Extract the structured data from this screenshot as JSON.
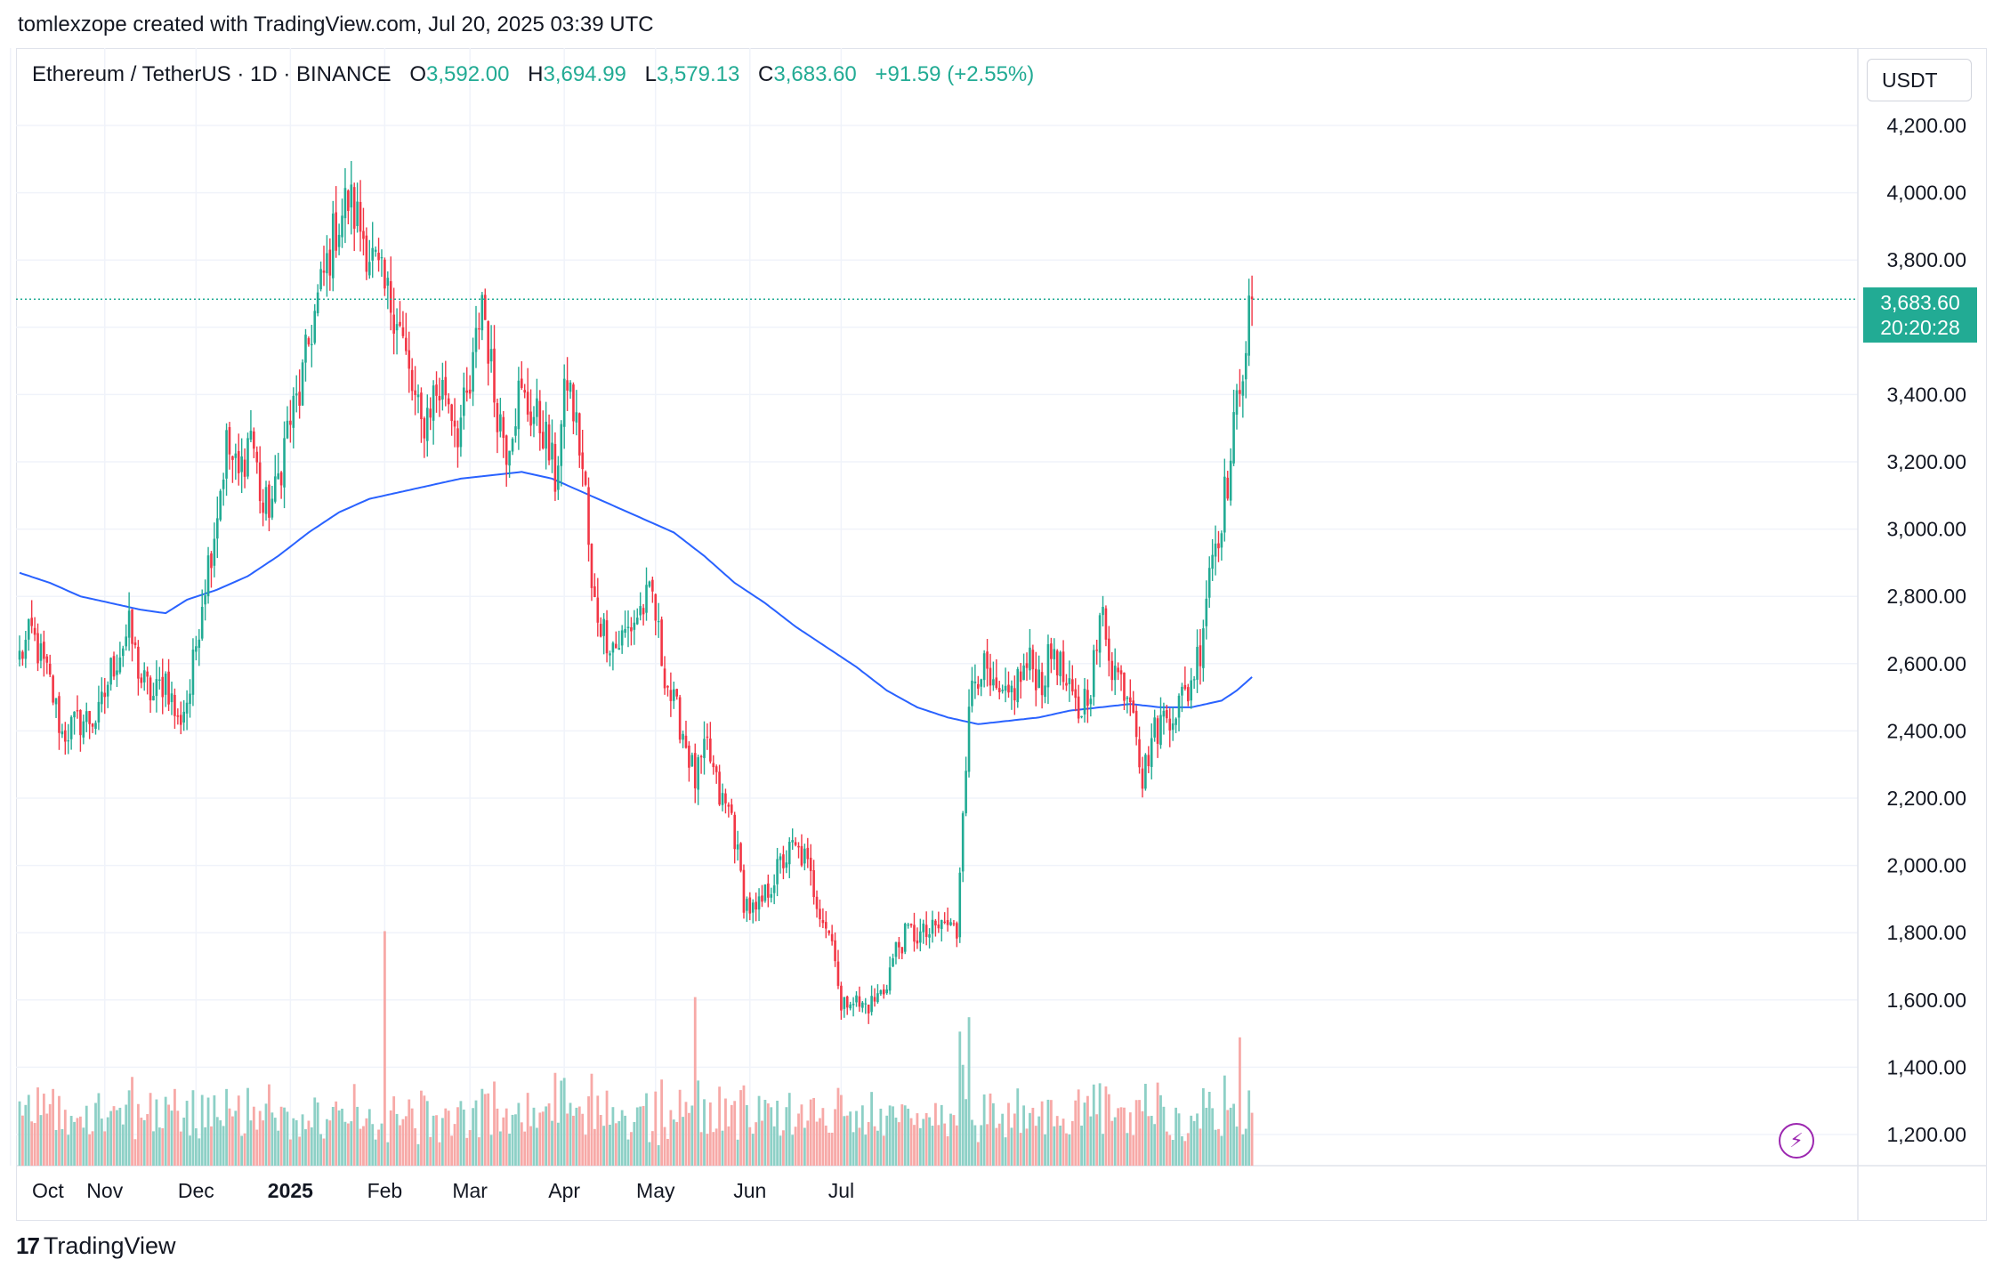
{
  "header": {
    "attribution": "tomlexzope created with TradingView.com, Jul 20, 2025 03:39 UTC"
  },
  "legend": {
    "symbol": "Ethereum / TetherUS · 1D · BINANCE",
    "open_label": "O",
    "open": "3,592.00",
    "high_label": "H",
    "high": "3,694.99",
    "low_label": "L",
    "low": "3,579.13",
    "close_label": "C",
    "close": "3,683.60",
    "change": "+91.59 (+2.55%)"
  },
  "currency": "USDT",
  "price_tag": {
    "price": "3,683.60",
    "countdown": "20:20:28"
  },
  "icons": {
    "bolt": "lightning-icon"
  },
  "footer": {
    "logo_text": "TradingView",
    "logo_mark": "17"
  },
  "colors": {
    "up": "#22ab94",
    "down": "#f23645",
    "ma": "#2962ff",
    "vol_up": "#8dd0c6",
    "vol_down": "#f7a9a7"
  },
  "chart_data": {
    "type": "candlestick",
    "title": "Ethereum / TetherUS · 1D · BINANCE",
    "ylim": [
      1100,
      4300
    ],
    "y_ticks": [
      4200,
      4000,
      3800,
      3600,
      3400,
      3200,
      3000,
      2800,
      2600,
      2400,
      2200,
      2000,
      1800,
      1600,
      1400,
      1200
    ],
    "y_tick_labels": [
      "4,200.00",
      "4,000.00",
      "3,800.00",
      "3,400.00",
      "3,200.00",
      "3,000.00",
      "2,800.00",
      "2,600.00",
      "2,400.00",
      "2,200.00",
      "2,000.00",
      "1,800.00",
      "1,600.00",
      "1,400.00",
      "1,200.00"
    ],
    "y_tick_values": [
      4200,
      4000,
      3800,
      3400,
      3200,
      3000,
      2800,
      2600,
      2400,
      2200,
      2000,
      1800,
      1600,
      1400,
      1200
    ],
    "x_labels": [
      "Oct",
      "Nov",
      "Dec",
      "2025",
      "Feb",
      "Mar",
      "Apr",
      "May",
      "Jun",
      "Jul"
    ],
    "x_label_day": [
      -3,
      28,
      58,
      89,
      120,
      148,
      179,
      209,
      240,
      270
    ],
    "last_price": 3683.6,
    "close_keypoints": [
      [
        0,
        2620
      ],
      [
        4,
        2690
      ],
      [
        10,
        2540
      ],
      [
        14,
        2390
      ],
      [
        20,
        2430
      ],
      [
        26,
        2440
      ],
      [
        30,
        2580
      ],
      [
        36,
        2700
      ],
      [
        40,
        2550
      ],
      [
        44,
        2500
      ],
      [
        48,
        2560
      ],
      [
        52,
        2420
      ],
      [
        56,
        2520
      ],
      [
        60,
        2800
      ],
      [
        64,
        3000
      ],
      [
        68,
        3250
      ],
      [
        72,
        3150
      ],
      [
        76,
        3300
      ],
      [
        80,
        3050
      ],
      [
        84,
        3100
      ],
      [
        88,
        3300
      ],
      [
        92,
        3400
      ],
      [
        96,
        3600
      ],
      [
        100,
        3750
      ],
      [
        104,
        3900
      ],
      [
        108,
        3980
      ],
      [
        112,
        3900
      ],
      [
        116,
        3800
      ],
      [
        120,
        3700
      ],
      [
        124,
        3650
      ],
      [
        128,
        3450
      ],
      [
        132,
        3300
      ],
      [
        136,
        3400
      ],
      [
        140,
        3420
      ],
      [
        144,
        3300
      ],
      [
        148,
        3400
      ],
      [
        152,
        3700
      ],
      [
        156,
        3400
      ],
      [
        160,
        3250
      ],
      [
        164,
        3400
      ],
      [
        168,
        3350
      ],
      [
        172,
        3300
      ],
      [
        176,
        3150
      ],
      [
        180,
        3450
      ],
      [
        184,
        3250
      ],
      [
        186,
        3100
      ],
      [
        188,
        2800
      ],
      [
        192,
        2700
      ],
      [
        196,
        2650
      ],
      [
        200,
        2700
      ],
      [
        204,
        2760
      ],
      [
        208,
        2800
      ],
      [
        211,
        2620
      ],
      [
        214,
        2500
      ],
      [
        218,
        2400
      ],
      [
        222,
        2250
      ],
      [
        226,
        2350
      ],
      [
        230,
        2200
      ],
      [
        234,
        2150
      ],
      [
        238,
        1900
      ],
      [
        242,
        1850
      ],
      [
        246,
        1930
      ],
      [
        250,
        2000
      ],
      [
        254,
        2050
      ],
      [
        258,
        2020
      ],
      [
        262,
        1900
      ],
      [
        266,
        1800
      ],
      [
        268,
        1750
      ],
      [
        270,
        1560
      ],
      [
        273,
        1620
      ],
      [
        276,
        1580
      ],
      [
        280,
        1590
      ],
      [
        284,
        1630
      ],
      [
        288,
        1750
      ],
      [
        292,
        1800
      ],
      [
        296,
        1790
      ],
      [
        300,
        1800
      ],
      [
        304,
        1830
      ],
      [
        308,
        1800
      ],
      [
        310,
        2200
      ],
      [
        313,
        2550
      ],
      [
        316,
        2600
      ],
      [
        320,
        2500
      ],
      [
        324,
        2480
      ],
      [
        328,
        2550
      ],
      [
        332,
        2600
      ],
      [
        336,
        2550
      ],
      [
        340,
        2650
      ],
      [
        344,
        2520
      ],
      [
        348,
        2450
      ],
      [
        352,
        2550
      ],
      [
        356,
        2750
      ],
      [
        359,
        2600
      ],
      [
        362,
        2550
      ],
      [
        366,
        2500
      ],
      [
        369,
        2250
      ],
      [
        372,
        2380
      ],
      [
        376,
        2440
      ],
      [
        380,
        2470
      ],
      [
        384,
        2520
      ],
      [
        388,
        2650
      ],
      [
        391,
        2900
      ],
      [
        394,
        3000
      ],
      [
        398,
        3200
      ],
      [
        401,
        3450
      ],
      [
        405,
        3684
      ]
    ],
    "ma_keypoints": [
      [
        0,
        2870
      ],
      [
        10,
        2840
      ],
      [
        20,
        2800
      ],
      [
        30,
        2780
      ],
      [
        40,
        2760
      ],
      [
        48,
        2750
      ],
      [
        55,
        2790
      ],
      [
        65,
        2820
      ],
      [
        75,
        2860
      ],
      [
        85,
        2920
      ],
      [
        95,
        2990
      ],
      [
        105,
        3050
      ],
      [
        115,
        3090
      ],
      [
        125,
        3110
      ],
      [
        135,
        3130
      ],
      [
        145,
        3150
      ],
      [
        155,
        3160
      ],
      [
        165,
        3170
      ],
      [
        175,
        3150
      ],
      [
        185,
        3110
      ],
      [
        195,
        3070
      ],
      [
        205,
        3030
      ],
      [
        215,
        2990
      ],
      [
        225,
        2920
      ],
      [
        235,
        2840
      ],
      [
        245,
        2780
      ],
      [
        255,
        2710
      ],
      [
        265,
        2650
      ],
      [
        275,
        2590
      ],
      [
        285,
        2520
      ],
      [
        295,
        2470
      ],
      [
        305,
        2440
      ],
      [
        315,
        2420
      ],
      [
        325,
        2430
      ],
      [
        335,
        2440
      ],
      [
        345,
        2460
      ],
      [
        355,
        2470
      ],
      [
        365,
        2480
      ],
      [
        375,
        2470
      ],
      [
        385,
        2470
      ],
      [
        395,
        2490
      ],
      [
        400,
        2520
      ],
      [
        405,
        2560
      ]
    ],
    "volume_spikes": [
      [
        120,
        2.4
      ],
      [
        222,
        1.6
      ],
      [
        312,
        1.5
      ],
      [
        401,
        1.3
      ]
    ]
  }
}
